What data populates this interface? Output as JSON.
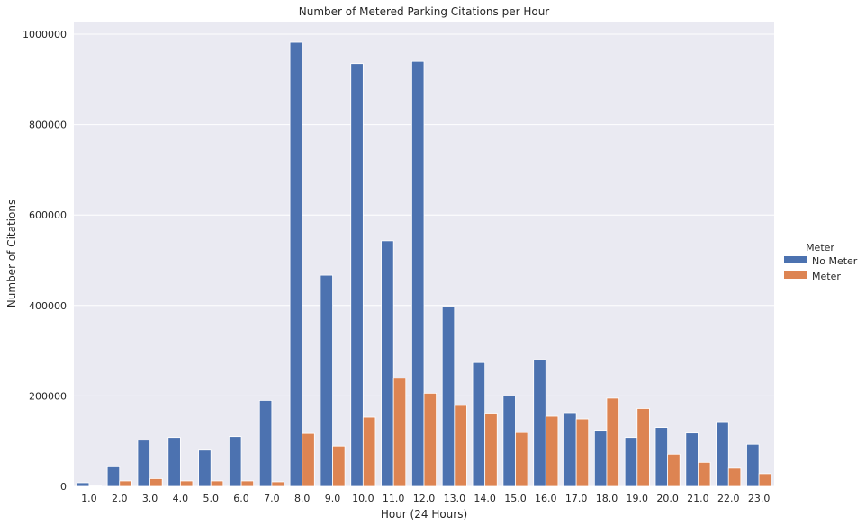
{
  "chart_data": {
    "type": "bar",
    "title": "Number of Metered Parking Citations per Hour",
    "xlabel": "Hour (24 Hours)",
    "ylabel": "Number of Citations",
    "ylim": [
      0,
      1000000
    ],
    "yticks": [
      0,
      200000,
      400000,
      600000,
      800000,
      1000000
    ],
    "grid": true,
    "legend": {
      "title": "Meter",
      "placement": "right"
    },
    "categories": [
      "1.0",
      "2.0",
      "3.0",
      "4.0",
      "5.0",
      "6.0",
      "7.0",
      "8.0",
      "9.0",
      "10.0",
      "11.0",
      "12.0",
      "13.0",
      "14.0",
      "15.0",
      "16.0",
      "17.0",
      "18.0",
      "19.0",
      "20.0",
      "21.0",
      "22.0",
      "23.0"
    ],
    "series": [
      {
        "name": "No Meter",
        "color": "#4c72b0",
        "values": [
          8000,
          45000,
          102000,
          108000,
          80000,
          110000,
          190000,
          982000,
          467000,
          935000,
          543000,
          940000,
          397000,
          274000,
          200000,
          280000,
          163000,
          124000,
          108000,
          130000,
          118000,
          143000,
          93000
        ]
      },
      {
        "name": "Meter",
        "color": "#dd8452",
        "values": [
          1000,
          12000,
          17000,
          12000,
          12000,
          12000,
          10000,
          117000,
          89000,
          153000,
          239000,
          206000,
          179000,
          162000,
          119000,
          155000,
          149000,
          195000,
          172000,
          71000,
          53000,
          40000,
          28000
        ]
      }
    ]
  }
}
